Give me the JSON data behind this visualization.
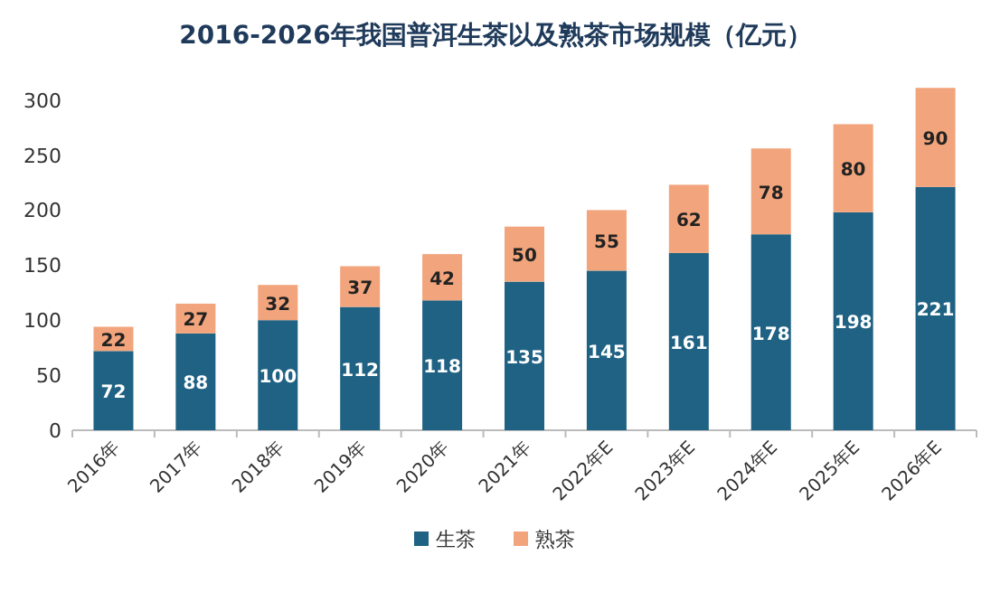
{
  "chart_data": {
    "type": "bar",
    "title": "2016-2026年我国普洱生茶以及熟茶市场规模（亿元）",
    "categories": [
      "2016年",
      "2017年",
      "2018年",
      "2019年",
      "2020年",
      "2021年",
      "2022年E",
      "2023年E",
      "2024年E",
      "2025年E",
      "2026年E"
    ],
    "series": [
      {
        "name": "生茶",
        "color": "#1f6283",
        "values": [
          72,
          88,
          100,
          112,
          118,
          135,
          145,
          161,
          178,
          198,
          221
        ]
      },
      {
        "name": "熟茶",
        "color": "#f2a57c",
        "values": [
          22,
          27,
          32,
          37,
          42,
          50,
          55,
          62,
          78,
          80,
          90
        ]
      }
    ],
    "stacked": true,
    "ylim": [
      0,
      312
    ],
    "yticks": [
      0,
      50,
      100,
      150,
      200,
      250,
      300
    ],
    "data_labels": true,
    "legend": "bottom"
  }
}
